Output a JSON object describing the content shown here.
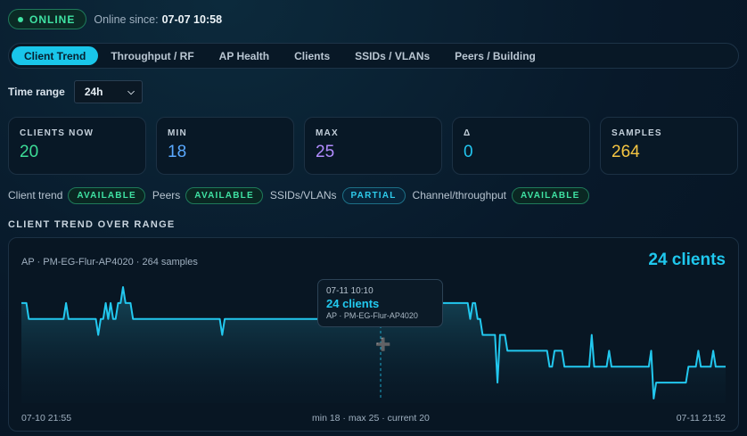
{
  "status": {
    "badge": "ONLINE",
    "since_label": "Online since:",
    "since_value": "07-07 10:58"
  },
  "tabs": [
    "Client Trend",
    "Throughput / RF",
    "AP Health",
    "Clients",
    "SSIDs / VLANs",
    "Peers / Building"
  ],
  "active_tab": 0,
  "time_range": {
    "label": "Time range",
    "value": "24h"
  },
  "cards": [
    {
      "label": "CLIENTS NOW",
      "value": "20",
      "color": "#3ddc97"
    },
    {
      "label": "MIN",
      "value": "18",
      "color": "#5aa9ff"
    },
    {
      "label": "MAX",
      "value": "25",
      "color": "#b28cff"
    },
    {
      "label": "Δ",
      "value": "0",
      "color": "#22c5ef"
    },
    {
      "label": "SAMPLES",
      "value": "264",
      "color": "#f5c542"
    }
  ],
  "availability": [
    {
      "label": "Client trend",
      "status": "AVAILABLE"
    },
    {
      "label": "Peers",
      "status": "AVAILABLE"
    },
    {
      "label": "SSIDs/VLANs",
      "status": "PARTIAL"
    },
    {
      "label": "Channel/throughput",
      "status": "AVAILABLE"
    }
  ],
  "section_title": "CLIENT TREND OVER RANGE",
  "chart": {
    "subtitle": "AP · PM-EG-Flur-AP4020 · 264 samples",
    "big_label": "24 clients",
    "x_start": "07-10 21:55",
    "x_end": "07-11 21:52",
    "summary": "min 18 · max 25 · current 20",
    "tooltip": {
      "time": "07-11 10:10",
      "value": "24 clients",
      "ap": "AP · PM-EG-Flur-AP4020"
    },
    "line_color": "#22c8ef"
  },
  "chart_data": {
    "type": "area",
    "ylim": [
      18,
      25
    ],
    "series": [
      {
        "values": [
          24,
          24,
          24,
          23,
          23,
          23,
          23,
          23,
          23,
          23,
          23,
          23,
          23,
          23,
          23,
          23,
          23,
          23,
          24,
          23,
          23,
          23,
          23,
          23,
          23,
          23,
          23,
          23,
          23,
          23,
          23,
          22,
          23,
          23,
          24,
          23,
          24,
          23,
          23,
          24,
          24,
          25,
          24,
          24,
          24,
          23,
          23,
          23,
          23,
          23,
          23,
          23,
          23,
          23,
          23,
          23,
          23,
          23,
          23,
          23,
          23,
          23,
          23,
          23,
          23,
          23,
          23,
          23,
          23,
          23,
          23,
          23,
          23,
          23,
          23,
          23,
          23,
          23,
          23,
          23,
          23,
          22,
          23,
          23,
          23,
          23,
          23,
          23,
          23,
          23,
          23,
          23,
          23,
          23,
          23,
          23,
          23,
          23,
          23,
          23,
          23,
          23,
          23,
          23,
          23,
          23,
          23,
          23,
          23,
          23,
          23,
          23,
          23,
          23,
          23,
          23,
          23,
          23,
          23,
          23,
          23,
          23,
          23,
          23,
          23,
          23,
          23,
          23,
          23,
          23,
          23,
          23,
          23,
          23,
          23,
          23,
          23,
          24,
          24,
          24,
          24,
          24,
          24,
          24,
          24,
          24,
          23,
          23,
          23,
          24,
          24,
          24,
          24,
          24,
          24,
          24,
          24,
          24,
          24,
          24,
          24,
          24,
          24,
          24,
          24,
          24,
          24,
          24,
          24,
          24,
          24,
          24,
          24,
          24,
          24,
          24,
          24,
          24,
          24,
          24,
          24,
          23,
          24,
          24,
          23,
          23,
          22,
          22,
          22,
          22,
          22,
          22,
          19,
          22,
          22,
          22,
          21,
          21,
          21,
          21,
          21,
          21,
          21,
          21,
          21,
          21,
          21,
          21,
          21,
          21,
          21,
          21,
          21,
          20,
          20,
          21,
          21,
          21,
          21,
          20,
          20,
          20,
          20,
          20,
          20,
          20,
          20,
          20,
          20,
          20,
          22,
          20,
          20,
          20,
          20,
          20,
          20,
          21,
          20,
          20,
          20,
          20,
          20,
          20,
          20,
          20,
          20,
          20,
          20,
          20,
          20,
          20,
          20,
          20,
          21,
          18,
          19,
          19,
          19,
          19,
          19,
          19,
          19,
          19,
          19,
          19,
          19,
          19,
          19,
          20,
          20,
          20,
          20,
          21,
          20,
          20,
          20,
          20,
          20,
          21,
          20,
          20,
          20,
          20,
          20
        ]
      }
    ]
  }
}
